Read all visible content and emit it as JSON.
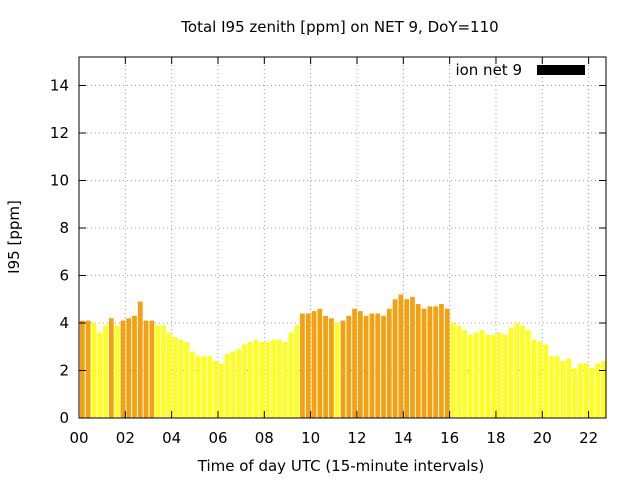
{
  "chart_data": {
    "type": "bar",
    "title": "Total I95 zenith [ppm] on NET 9, DoY=110",
    "xlabel": "Time of day UTC (15-minute intervals)",
    "ylabel": "I95 [ppm]",
    "xlim": [
      0,
      22.75
    ],
    "ylim": [
      0,
      15.2
    ],
    "x_ticks": [
      "00",
      "02",
      "04",
      "06",
      "08",
      "10",
      "12",
      "14",
      "16",
      "18",
      "20",
      "22"
    ],
    "y_ticks": [
      "0",
      "2",
      "4",
      "6",
      "8",
      "10",
      "12",
      "14"
    ],
    "grid": true,
    "grid_style": "dotted",
    "legend_position": "top-right",
    "series": [
      {
        "name": "ion net 9",
        "legend_color": "#000000",
        "x": [
          0.0,
          0.25,
          0.5,
          0.75,
          1.0,
          1.25,
          1.5,
          1.75,
          2.0,
          2.25,
          2.5,
          2.75,
          3.0,
          3.25,
          3.5,
          3.75,
          4.0,
          4.25,
          4.5,
          4.75,
          5.0,
          5.25,
          5.5,
          5.75,
          6.0,
          6.25,
          6.5,
          6.75,
          7.0,
          7.25,
          7.5,
          7.75,
          8.0,
          8.25,
          8.5,
          8.75,
          9.0,
          9.25,
          9.5,
          9.75,
          10.0,
          10.25,
          10.5,
          10.75,
          11.0,
          11.25,
          11.5,
          11.75,
          12.0,
          12.25,
          12.5,
          12.75,
          13.0,
          13.25,
          13.5,
          13.75,
          14.0,
          14.25,
          14.5,
          14.75,
          15.0,
          15.25,
          15.5,
          15.75,
          16.0,
          16.25,
          16.5,
          16.75,
          17.0,
          17.25,
          17.5,
          17.75,
          18.0,
          18.25,
          18.5,
          18.75,
          19.0,
          19.25,
          19.5,
          19.75,
          20.0,
          20.25,
          20.5,
          20.75,
          21.0,
          21.25,
          21.5,
          21.75,
          22.0,
          22.25,
          22.5
        ],
        "values": [
          4.1,
          4.1,
          4.0,
          3.6,
          3.9,
          4.2,
          3.9,
          4.1,
          4.2,
          4.3,
          4.9,
          4.1,
          4.1,
          3.9,
          3.9,
          3.6,
          3.4,
          3.3,
          3.2,
          2.8,
          2.6,
          2.6,
          2.6,
          2.4,
          2.3,
          2.7,
          2.8,
          2.9,
          3.1,
          3.2,
          3.3,
          3.2,
          3.2,
          3.3,
          3.3,
          3.2,
          3.6,
          3.9,
          4.4,
          4.4,
          4.5,
          4.6,
          4.3,
          4.2,
          4.0,
          4.1,
          4.3,
          4.6,
          4.5,
          4.3,
          4.4,
          4.4,
          4.3,
          4.6,
          5.0,
          5.2,
          5.0,
          5.1,
          4.8,
          4.6,
          4.7,
          4.7,
          4.8,
          4.6,
          4.0,
          3.9,
          3.7,
          3.5,
          3.6,
          3.7,
          3.5,
          3.5,
          3.6,
          3.5,
          3.8,
          4.0,
          3.9,
          3.7,
          3.3,
          3.2,
          3.1,
          2.6,
          2.6,
          2.4,
          2.5,
          2.1,
          2.3,
          2.3,
          2.1,
          2.3,
          2.4
        ],
        "colors": [
          "#f5a00f",
          "#f5a00f",
          "#ffff1e",
          "#ffff1e",
          "#ffff1e",
          "#f5a00f",
          "#ffff1e",
          "#f5a00f",
          "#f5a00f",
          "#f5a00f",
          "#f5a00f",
          "#f5a00f",
          "#f5a00f",
          "#ffff1e",
          "#ffff1e",
          "#ffff1e",
          "#ffff1e",
          "#ffff1e",
          "#ffff1e",
          "#ffff1e",
          "#ffff1e",
          "#ffff1e",
          "#ffff1e",
          "#ffff1e",
          "#ffff1e",
          "#ffff1e",
          "#ffff1e",
          "#ffff1e",
          "#ffff1e",
          "#ffff1e",
          "#ffff1e",
          "#ffff1e",
          "#ffff1e",
          "#ffff1e",
          "#ffff1e",
          "#ffff1e",
          "#ffff1e",
          "#ffff1e",
          "#f5a00f",
          "#f5a00f",
          "#f5a00f",
          "#f5a00f",
          "#f5a00f",
          "#f5a00f",
          "#ffff1e",
          "#f5a00f",
          "#f5a00f",
          "#f5a00f",
          "#f5a00f",
          "#f5a00f",
          "#f5a00f",
          "#f5a00f",
          "#f5a00f",
          "#f5a00f",
          "#f5a00f",
          "#f5a00f",
          "#f5a00f",
          "#f5a00f",
          "#f5a00f",
          "#f5a00f",
          "#f5a00f",
          "#f5a00f",
          "#f5a00f",
          "#f5a00f",
          "#ffff1e",
          "#ffff1e",
          "#ffff1e",
          "#ffff1e",
          "#ffff1e",
          "#ffff1e",
          "#ffff1e",
          "#ffff1e",
          "#ffff1e",
          "#ffff1e",
          "#ffff1e",
          "#ffff1e",
          "#ffff1e",
          "#ffff1e",
          "#ffff1e",
          "#ffff1e",
          "#ffff1e",
          "#ffff1e",
          "#ffff1e",
          "#ffff1e",
          "#ffff1e",
          "#ffff1e",
          "#ffff1e",
          "#ffff1e",
          "#ffff1e",
          "#ffff1e",
          "#ffff1e"
        ]
      }
    ]
  }
}
